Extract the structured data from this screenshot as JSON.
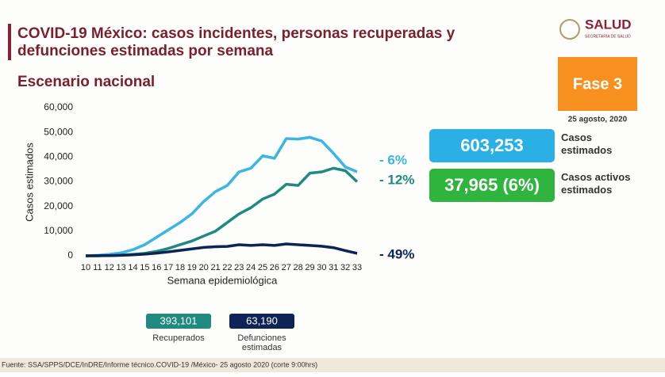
{
  "logo": {
    "name": "SALUD",
    "subtitle": "SECRETARÍA DE SALUD"
  },
  "title": "COVID-19 México: casos incidentes, personas recuperadas y defunciones estimadas por semana",
  "section": "Escenario nacional",
  "phase": "Fase 3",
  "date": "25 agosto, 2020",
  "summary": [
    {
      "value": "603,253",
      "label": "Casos estimados",
      "color": "#2bb0e6"
    },
    {
      "value": "37,965 (6%)",
      "label": "Casos activos estimados",
      "color": "#2fb53d"
    }
  ],
  "totals": [
    {
      "value": "393,101",
      "label": "Recuperados",
      "color": "#1f8a80"
    },
    {
      "value": "63,190",
      "label": "Defunciones estimadas",
      "color": "#0e2456"
    }
  ],
  "footnote": "Fuente: SSA/SPPS/DCE/InDRE/Informe técnico.COVID-19 /México- 25 agosto 2020 (corte 9:00hrs)",
  "chart_data": {
    "type": "line",
    "y_label": "Casos estimados",
    "x_label": "Semana epidemiológica",
    "categories": [
      "10",
      "11",
      "12",
      "13",
      "14",
      "15",
      "16",
      "17",
      "18",
      "19",
      "20",
      "21",
      "22",
      "23",
      "24",
      "25",
      "26",
      "27",
      "28",
      "29",
      "30",
      "31",
      "32",
      "33"
    ],
    "ylim": [
      0,
      60000
    ],
    "yticks": [
      0,
      {
        "value": 10000,
        "label": "10,000"
      },
      {
        "value": 20000,
        "label": "20,000"
      },
      {
        "value": 30000,
        "label": "30,000"
      },
      {
        "value": 40000,
        "label": "40,000"
      },
      {
        "value": 50000,
        "label": "50,000"
      },
      {
        "value": 60000,
        "label": "60,000"
      }
    ],
    "series": [
      {
        "color": "#3bb6e3",
        "end_label": "- 6%",
        "values": [
          0,
          200,
          600,
          1200,
          2500,
          4500,
          7500,
          10500,
          13500,
          17000,
          22000,
          26000,
          28500,
          34000,
          35500,
          40500,
          39500,
          47500,
          47300,
          48000,
          46500,
          41500,
          36000,
          34000
        ]
      },
      {
        "color": "#1f8a80",
        "end_label": "- 12%",
        "values": [
          0,
          0,
          100,
          300,
          600,
          1000,
          1800,
          3000,
          4500,
          6000,
          8000,
          10000,
          13500,
          17000,
          19500,
          23000,
          25000,
          29000,
          28500,
          33500,
          34000,
          35500,
          34500,
          30000
        ]
      },
      {
        "color": "#0e2456",
        "end_label": "- 49%",
        "values": [
          0,
          50,
          100,
          200,
          400,
          700,
          1100,
          1600,
          2200,
          2800,
          3400,
          3700,
          3800,
          4500,
          4200,
          4500,
          4200,
          4800,
          4500,
          4200,
          3900,
          3300,
          2100,
          1000
        ]
      }
    ]
  }
}
